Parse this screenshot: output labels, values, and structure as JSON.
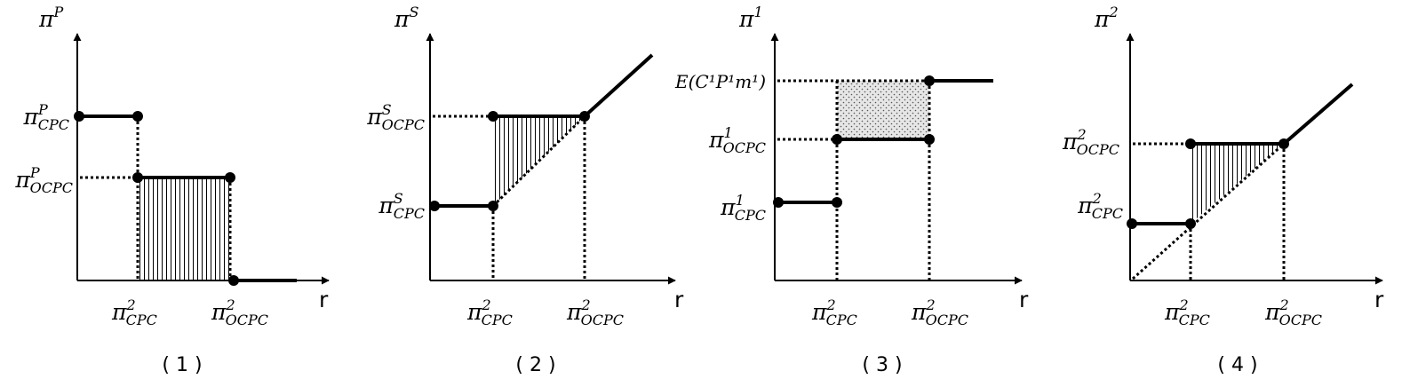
{
  "panels": [
    {
      "id": "p1",
      "caption": "( 1 )",
      "y_axis": {
        "sym": "π",
        "sup": "P"
      },
      "x_axis_label": "r",
      "y_ticks": [
        {
          "id": "a",
          "sym": "π",
          "sup": "P",
          "sub": "CPC"
        },
        {
          "id": "b",
          "sym": "π",
          "sup": "P",
          "sub": "OCPC"
        }
      ],
      "x_ticks": [
        {
          "id": "a",
          "sym": "π",
          "sup": "2",
          "sub": "CPC"
        },
        {
          "id": "b",
          "sym": "π",
          "sup": "2",
          "sub": "OCPC"
        }
      ]
    },
    {
      "id": "p2",
      "caption": "( 2 )",
      "y_axis": {
        "sym": "π",
        "sup": "S"
      },
      "x_axis_label": "r",
      "y_ticks": [
        {
          "id": "a",
          "sym": "π",
          "sup": "S",
          "sub": "OCPC"
        },
        {
          "id": "b",
          "sym": "π",
          "sup": "S",
          "sub": "CPC"
        }
      ],
      "x_ticks": [
        {
          "id": "a",
          "sym": "π",
          "sup": "2",
          "sub": "CPC"
        },
        {
          "id": "b",
          "sym": "π",
          "sup": "2",
          "sub": "OCPC"
        }
      ]
    },
    {
      "id": "p3",
      "caption": "( 3 )",
      "y_axis": {
        "sym": "π",
        "sup": "1"
      },
      "x_axis_label": "r",
      "y_ticks": [
        {
          "id": "a",
          "expr": "E(C¹P¹m¹)"
        },
        {
          "id": "b",
          "sym": "π",
          "sup": "1",
          "sub": "OCPC"
        },
        {
          "id": "c",
          "sym": "π",
          "sup": "1",
          "sub": "CPC"
        }
      ],
      "x_ticks": [
        {
          "id": "a",
          "sym": "π",
          "sup": "2",
          "sub": "CPC"
        },
        {
          "id": "b",
          "sym": "π",
          "sup": "2",
          "sub": "OCPC"
        }
      ]
    },
    {
      "id": "p4",
      "caption": "( 4 )",
      "y_axis": {
        "sym": "π",
        "sup": "2"
      },
      "x_axis_label": "r",
      "y_ticks": [
        {
          "id": "a",
          "sym": "π",
          "sup": "2",
          "sub": "OCPC"
        },
        {
          "id": "b",
          "sym": "π",
          "sup": "2",
          "sub": "CPC"
        }
      ],
      "x_ticks": [
        {
          "id": "a",
          "sym": "π",
          "sup": "2",
          "sub": "CPC"
        },
        {
          "id": "b",
          "sym": "π",
          "sup": "2",
          "sub": "OCPC"
        }
      ]
    }
  ]
}
